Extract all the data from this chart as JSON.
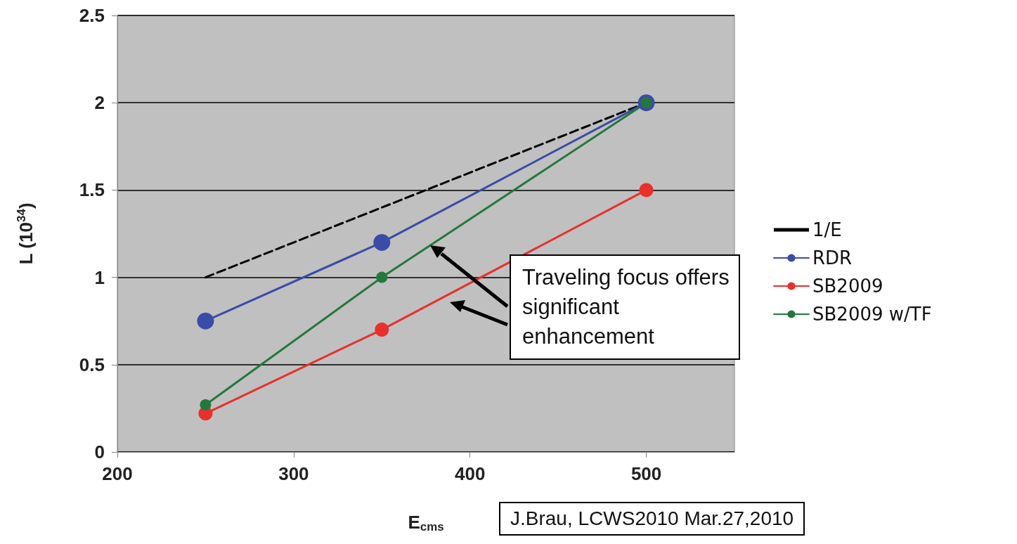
{
  "chart_data": {
    "type": "line",
    "xlabel": "E$_{cms}$",
    "ylabel": "L (10$^{34}$)",
    "xlim": [
      200,
      550
    ],
    "xticks": [
      200,
      300,
      400,
      500
    ],
    "ylim": [
      0,
      2.5
    ],
    "yticks": [
      0,
      0.5,
      1,
      1.5,
      2,
      2.5
    ],
    "grid": "y",
    "legend": "right",
    "marker": "circle",
    "series": [
      {
        "name": "1/E",
        "color": "#000000",
        "x": [
          250,
          500
        ],
        "values": [
          1,
          2
        ],
        "line_style": "dashed",
        "marker": "none"
      },
      {
        "name": "RDR",
        "color": "#3b4ba8",
        "x": [
          250,
          350,
          500
        ],
        "values": [
          0.75,
          1.2,
          2
        ]
      },
      {
        "name": "SB2009",
        "color": "#e8302c",
        "x": [
          250,
          350,
          500
        ],
        "values": [
          0.22,
          0.7,
          1.5
        ]
      },
      {
        "name": "SB2009 w/TF",
        "color": "#23783c",
        "x": [
          250,
          350,
          500
        ],
        "values": [
          0.27,
          1,
          2
        ]
      }
    ],
    "annotations": [
      "Traveling focus offers significant enhancement",
      "J.Brau, LCWS2010 Mar.27,2010"
    ]
  }
}
